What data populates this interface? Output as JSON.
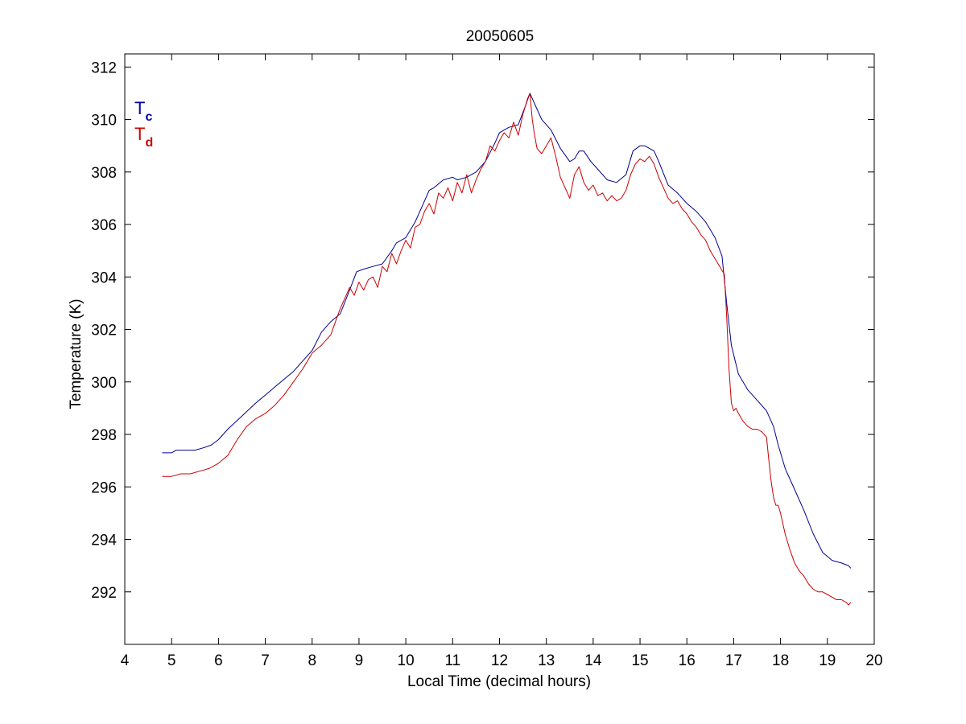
{
  "chart_data": {
    "type": "line",
    "title": "20050605",
    "xlabel": "Local Time (decimal hours)",
    "ylabel": "Temperature (K)",
    "xlim": [
      4,
      20
    ],
    "ylim": [
      290,
      312.5
    ],
    "xticks": [
      4,
      5,
      6,
      7,
      8,
      9,
      10,
      11,
      12,
      13,
      14,
      15,
      16,
      17,
      18,
      19,
      20
    ],
    "yticks": [
      292,
      294,
      296,
      298,
      300,
      302,
      304,
      306,
      308,
      310,
      312
    ],
    "grid": false,
    "legend": {
      "placement": "top-left",
      "entries": [
        {
          "base": "T",
          "sub": "c",
          "color": "#0000aa"
        },
        {
          "base": "T",
          "sub": "d",
          "color": "#cc0000"
        }
      ]
    },
    "series": [
      {
        "key": "Tc",
        "color": "#00008b",
        "x": [
          4.8,
          5.0,
          5.1,
          5.3,
          5.5,
          5.7,
          5.85,
          6.0,
          6.2,
          6.5,
          6.8,
          7.0,
          7.2,
          7.4,
          7.6,
          7.8,
          8.0,
          8.2,
          8.4,
          8.6,
          8.8,
          8.95,
          9.1,
          9.3,
          9.5,
          9.7,
          9.8,
          10.0,
          10.2,
          10.4,
          10.5,
          10.6,
          10.8,
          11.0,
          11.1,
          11.3,
          11.5,
          11.7,
          11.9,
          12.0,
          12.2,
          12.4,
          12.55,
          12.65,
          12.75,
          12.9,
          13.0,
          13.1,
          13.3,
          13.5,
          13.6,
          13.7,
          13.8,
          13.95,
          14.1,
          14.3,
          14.5,
          14.7,
          14.85,
          15.0,
          15.1,
          15.3,
          15.4,
          15.6,
          15.8,
          16.0,
          16.2,
          16.4,
          16.6,
          16.75,
          16.85,
          16.95,
          17.1,
          17.3,
          17.5,
          17.7,
          17.85,
          17.95,
          18.1,
          18.3,
          18.5,
          18.7,
          18.9,
          19.1,
          19.3,
          19.45,
          19.5
        ],
        "y": [
          297.3,
          297.3,
          297.4,
          297.4,
          297.4,
          297.5,
          297.6,
          297.8,
          298.2,
          298.7,
          299.2,
          299.5,
          299.8,
          300.1,
          300.4,
          300.8,
          301.2,
          301.9,
          302.3,
          302.6,
          303.5,
          304.2,
          304.3,
          304.4,
          304.5,
          305.0,
          305.3,
          305.5,
          306.1,
          306.9,
          307.3,
          307.4,
          307.7,
          307.8,
          307.7,
          307.8,
          308.0,
          308.4,
          309.1,
          309.5,
          309.7,
          309.8,
          310.5,
          311.0,
          310.6,
          310.0,
          309.8,
          309.6,
          308.9,
          308.4,
          308.5,
          308.8,
          308.8,
          308.4,
          308.1,
          307.7,
          307.6,
          307.9,
          308.8,
          309.0,
          309.0,
          308.8,
          308.4,
          307.5,
          307.2,
          306.8,
          306.5,
          306.1,
          305.5,
          304.8,
          303.0,
          301.4,
          300.3,
          299.7,
          299.3,
          298.9,
          298.3,
          297.6,
          296.7,
          295.9,
          295.1,
          294.2,
          293.5,
          293.2,
          293.1,
          293.0,
          292.9
        ]
      },
      {
        "key": "Td",
        "color": "#cc0000",
        "x": [
          4.8,
          5.0,
          5.2,
          5.4,
          5.6,
          5.8,
          6.0,
          6.2,
          6.4,
          6.6,
          6.8,
          7.0,
          7.2,
          7.4,
          7.6,
          7.8,
          8.0,
          8.2,
          8.4,
          8.5,
          8.6,
          8.7,
          8.8,
          8.9,
          9.0,
          9.1,
          9.2,
          9.3,
          9.4,
          9.5,
          9.6,
          9.7,
          9.8,
          9.9,
          10.0,
          10.1,
          10.2,
          10.3,
          10.4,
          10.5,
          10.6,
          10.7,
          10.8,
          10.9,
          11.0,
          11.1,
          11.2,
          11.3,
          11.4,
          11.5,
          11.6,
          11.7,
          11.8,
          11.9,
          12.0,
          12.1,
          12.2,
          12.3,
          12.4,
          12.5,
          12.6,
          12.65,
          12.7,
          12.75,
          12.8,
          12.9,
          13.0,
          13.1,
          13.2,
          13.3,
          13.4,
          13.5,
          13.6,
          13.7,
          13.8,
          13.9,
          14.0,
          14.1,
          14.2,
          14.3,
          14.4,
          14.5,
          14.6,
          14.7,
          14.8,
          14.9,
          15.0,
          15.1,
          15.2,
          15.3,
          15.4,
          15.5,
          15.6,
          15.7,
          15.8,
          15.9,
          16.0,
          16.1,
          16.2,
          16.3,
          16.4,
          16.5,
          16.6,
          16.7,
          16.8,
          16.85,
          16.9,
          16.95,
          17.0,
          17.05,
          17.1,
          17.2,
          17.3,
          17.4,
          17.5,
          17.6,
          17.7,
          17.75,
          17.8,
          17.85,
          17.9,
          17.95,
          18.0,
          18.1,
          18.2,
          18.3,
          18.4,
          18.5,
          18.6,
          18.7,
          18.8,
          18.9,
          19.0,
          19.1,
          19.2,
          19.3,
          19.4,
          19.45,
          19.5
        ],
        "y": [
          296.4,
          296.4,
          296.5,
          296.5,
          296.6,
          296.7,
          296.9,
          297.2,
          297.8,
          298.3,
          298.6,
          298.8,
          299.1,
          299.5,
          300.0,
          300.5,
          301.1,
          301.4,
          301.8,
          302.3,
          302.8,
          303.2,
          303.6,
          303.3,
          303.8,
          303.5,
          303.9,
          304.0,
          303.6,
          304.4,
          304.2,
          304.9,
          304.5,
          305.0,
          305.4,
          305.1,
          305.9,
          306.0,
          306.5,
          306.8,
          306.4,
          307.2,
          307.0,
          307.4,
          306.9,
          307.6,
          307.2,
          307.9,
          307.2,
          307.7,
          308.1,
          308.4,
          309.0,
          308.8,
          309.2,
          309.5,
          309.3,
          309.9,
          309.4,
          310.2,
          310.8,
          311.0,
          310.0,
          309.4,
          308.9,
          308.7,
          309.0,
          309.3,
          308.6,
          307.8,
          307.4,
          307.0,
          307.9,
          308.2,
          307.6,
          307.3,
          307.5,
          307.1,
          307.2,
          306.9,
          307.1,
          306.9,
          307.0,
          307.3,
          307.9,
          308.3,
          308.5,
          308.4,
          308.6,
          308.3,
          307.8,
          307.4,
          307.0,
          306.8,
          306.9,
          306.6,
          306.4,
          306.1,
          305.9,
          305.6,
          305.4,
          305.0,
          304.7,
          304.4,
          304.1,
          302.5,
          300.5,
          299.2,
          298.9,
          299.0,
          298.8,
          298.5,
          298.3,
          298.2,
          298.2,
          298.1,
          297.9,
          297.0,
          296.2,
          295.6,
          295.3,
          295.3,
          295.0,
          294.2,
          293.6,
          293.1,
          292.8,
          292.6,
          292.3,
          292.1,
          292.0,
          292.0,
          291.9,
          291.8,
          291.7,
          291.7,
          291.6,
          291.5,
          291.6
        ]
      }
    ]
  }
}
